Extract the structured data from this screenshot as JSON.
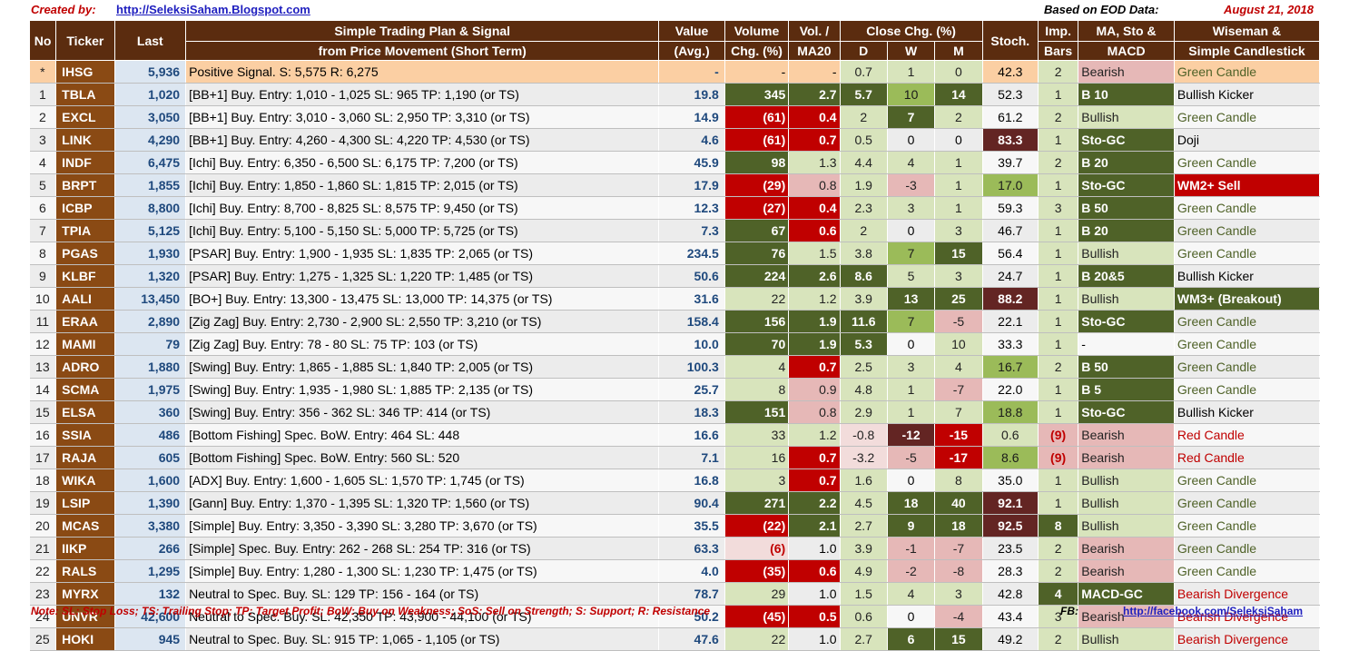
{
  "header": {
    "created_label": "Created by:",
    "site": "http://SeleksiSaham.Blogspot.com",
    "based_label": "Based on EOD Data:",
    "date": "August 21, 2018"
  },
  "columns": {
    "no": "No",
    "ticker": "Ticker",
    "last": "Last",
    "plan1": "Simple Trading Plan & Signal",
    "plan2": "from Price Movement (Short Term)",
    "value1": "Value",
    "value2": "(Avg.)",
    "vol1": "Volume",
    "vol2": "Chg. (%)",
    "ma1": "Vol. /",
    "ma2": "MA20",
    "close": "Close Chg. (%)",
    "d": "D",
    "w": "W",
    "m": "M",
    "stoch": "Stoch.",
    "imp1": "Imp.",
    "imp2": "Bars",
    "macd1": "MA, Sto &",
    "macd2": "MACD",
    "wise1": "Wiseman  &",
    "wise2": "Simple Candlestick"
  },
  "rows": [
    {
      "no": "*",
      "ticker": "IHSG",
      "last": "5,936",
      "plan": "Positive Signal.  S:   5,575  R:  6,275",
      "value": "-",
      "vol": "-",
      "ma": "-",
      "d": "0.7",
      "w": "1",
      "m": "0",
      "stoch": "42.3",
      "imp": "2",
      "macd": "Bearish",
      "wise": "Green Candle"
    },
    {
      "no": "1",
      "ticker": "TBLA",
      "last": "1,020",
      "plan": "[BB+1] Buy.  Entry:  1,010 -  1,025  SL:   965  TP:  1,190  (or TS)",
      "value": "19.8",
      "vol": "345",
      "ma": "2.7",
      "d": "5.7",
      "w": "10",
      "m": "14",
      "stoch": "52.3",
      "imp": "1",
      "macd": "B 10",
      "wise": "Bullish Kicker"
    },
    {
      "no": "2",
      "ticker": "EXCL",
      "last": "3,050",
      "plan": "[BB+1] Buy.  Entry:  3,010 -  3,060  SL:  2,950  TP:  3,310  (or TS)",
      "value": "14.9",
      "vol": "(61)",
      "ma": "0.4",
      "d": "2",
      "w": "7",
      "m": "2",
      "stoch": "61.2",
      "imp": "2",
      "macd": "Bullish",
      "wise": "Green Candle"
    },
    {
      "no": "3",
      "ticker": "LINK",
      "last": "4,290",
      "plan": "[BB+1] Buy.  Entry:  4,260 -  4,300  SL:  4,220  TP:  4,530  (or TS)",
      "value": "4.6",
      "vol": "(61)",
      "ma": "0.7",
      "d": "0.5",
      "w": "0",
      "m": "0",
      "stoch": "83.3",
      "imp": "1",
      "macd": "Sto-GC",
      "wise": "Doji"
    },
    {
      "no": "4",
      "ticker": "INDF",
      "last": "6,475",
      "plan": "[Ichi] Buy.  Entry:  6,350 -  6,500  SL:  6,175  TP:  7,200  (or TS)",
      "value": "45.9",
      "vol": "98",
      "ma": "1.3",
      "d": "4.4",
      "w": "4",
      "m": "1",
      "stoch": "39.7",
      "imp": "2",
      "macd": "B 20",
      "wise": "Green Candle"
    },
    {
      "no": "5",
      "ticker": "BRPT",
      "last": "1,855",
      "plan": "[Ichi] Buy.  Entry:  1,850 -  1,860  SL:  1,815  TP:  2,015  (or TS)",
      "value": "17.9",
      "vol": "(29)",
      "ma": "0.8",
      "d": "1.9",
      "w": "-3",
      "m": "1",
      "stoch": "17.0",
      "imp": "1",
      "macd": "Sto-GC",
      "wise": "WM2+ Sell"
    },
    {
      "no": "6",
      "ticker": "ICBP",
      "last": "8,800",
      "plan": "[Ichi] Buy.  Entry:  8,700 -  8,825  SL:  8,575  TP:  9,450  (or TS)",
      "value": "12.3",
      "vol": "(27)",
      "ma": "0.4",
      "d": "2.3",
      "w": "3",
      "m": "1",
      "stoch": "59.3",
      "imp": "3",
      "macd": "B 50",
      "wise": "Green Candle"
    },
    {
      "no": "7",
      "ticker": "TPIA",
      "last": "5,125",
      "plan": "[Ichi] Buy.  Entry:  5,100 -  5,150  SL:  5,000  TP:  5,725  (or TS)",
      "value": "7.3",
      "vol": "67",
      "ma": "0.6",
      "d": "2",
      "w": "0",
      "m": "3",
      "stoch": "46.7",
      "imp": "1",
      "macd": "B 20",
      "wise": "Green Candle"
    },
    {
      "no": "8",
      "ticker": "PGAS",
      "last": "1,930",
      "plan": "[PSAR] Buy.  Entry:  1,900 -  1,935  SL:  1,835  TP:  2,065  (or TS)",
      "value": "234.5",
      "vol": "76",
      "ma": "1.5",
      "d": "3.8",
      "w": "7",
      "m": "15",
      "stoch": "56.4",
      "imp": "1",
      "macd": "Bullish",
      "wise": "Green Candle"
    },
    {
      "no": "9",
      "ticker": "KLBF",
      "last": "1,320",
      "plan": "[PSAR] Buy.  Entry:  1,275 -  1,325  SL:  1,220  TP:  1,485  (or TS)",
      "value": "50.6",
      "vol": "224",
      "ma": "2.6",
      "d": "8.6",
      "w": "5",
      "m": "3",
      "stoch": "24.7",
      "imp": "1",
      "macd": "B 20&5",
      "wise": "Bullish Kicker"
    },
    {
      "no": "10",
      "ticker": "AALI",
      "last": "13,450",
      "plan": "[BO+] Buy.  Entry: 13,300 - 13,475  SL: 13,000  TP: 14,375  (or TS)",
      "value": "31.6",
      "vol": "22",
      "ma": "1.2",
      "d": "3.9",
      "w": "13",
      "m": "25",
      "stoch": "88.2",
      "imp": "1",
      "macd": "Bullish",
      "wise": "WM3+ (Breakout)"
    },
    {
      "no": "11",
      "ticker": "ERAA",
      "last": "2,890",
      "plan": "[Zig Zag] Buy.  Entry:  2,730 -  2,900  SL:  2,550  TP:  3,210  (or TS)",
      "value": "158.4",
      "vol": "156",
      "ma": "1.9",
      "d": "11.6",
      "w": "7",
      "m": "-5",
      "stoch": "22.1",
      "imp": "1",
      "macd": "Sto-GC",
      "wise": "Green Candle"
    },
    {
      "no": "12",
      "ticker": "MAMI",
      "last": "79",
      "plan": "[Zig Zag] Buy.  Entry:    78 -    80  SL:    75  TP:   103  (or TS)",
      "value": "10.0",
      "vol": "70",
      "ma": "1.9",
      "d": "5.3",
      "w": "0",
      "m": "10",
      "stoch": "33.3",
      "imp": "1",
      "macd": "-",
      "wise": "Green Candle"
    },
    {
      "no": "13",
      "ticker": "ADRO",
      "last": "1,880",
      "plan": "[Swing] Buy.  Entry:  1,865 -  1,885  SL:  1,840  TP:  2,005  (or TS)",
      "value": "100.3",
      "vol": "4",
      "ma": "0.7",
      "d": "2.5",
      "w": "3",
      "m": "4",
      "stoch": "16.7",
      "imp": "2",
      "macd": "B 50",
      "wise": "Green Candle"
    },
    {
      "no": "14",
      "ticker": "SCMA",
      "last": "1,975",
      "plan": "[Swing] Buy.  Entry:  1,935 -  1,980  SL:  1,885  TP:  2,135  (or TS)",
      "value": "25.7",
      "vol": "8",
      "ma": "0.9",
      "d": "4.8",
      "w": "1",
      "m": "-7",
      "stoch": "22.0",
      "imp": "1",
      "macd": "B 5",
      "wise": "Green Candle"
    },
    {
      "no": "15",
      "ticker": "ELSA",
      "last": "360",
      "plan": "[Swing] Buy.  Entry:   356 -   362  SL:   346  TP:   414  (or TS)",
      "value": "18.3",
      "vol": "151",
      "ma": "0.8",
      "d": "2.9",
      "w": "1",
      "m": "7",
      "stoch": "18.8",
      "imp": "1",
      "macd": "Sto-GC",
      "wise": "Bullish Kicker"
    },
    {
      "no": "16",
      "ticker": "SSIA",
      "last": "486",
      "plan": "[Bottom Fishing]  Spec. BoW. Entry:   464  SL:   448",
      "value": "16.6",
      "vol": "33",
      "ma": "1.2",
      "d": "-0.8",
      "w": "-12",
      "m": "-15",
      "stoch": "0.6",
      "imp": "(9)",
      "macd": "Bearish",
      "wise": "Red Candle"
    },
    {
      "no": "17",
      "ticker": "RAJA",
      "last": "605",
      "plan": "[Bottom Fishing]  Spec. BoW. Entry:   560  SL:   520",
      "value": "7.1",
      "vol": "16",
      "ma": "0.7",
      "d": "-3.2",
      "w": "-5",
      "m": "-17",
      "stoch": "8.6",
      "imp": "(9)",
      "macd": "Bearish",
      "wise": "Red Candle"
    },
    {
      "no": "18",
      "ticker": "WIKA",
      "last": "1,600",
      "plan": "[ADX] Buy.  Entry:  1,600 -  1,605  SL:  1,570  TP:  1,745  (or TS)",
      "value": "16.8",
      "vol": "3",
      "ma": "0.7",
      "d": "1.6",
      "w": "0",
      "m": "8",
      "stoch": "35.0",
      "imp": "1",
      "macd": "Bullish",
      "wise": "Green Candle"
    },
    {
      "no": "19",
      "ticker": "LSIP",
      "last": "1,390",
      "plan": "[Gann] Buy.  Entry:  1,370 -  1,395  SL:  1,320  TP:  1,560  (or TS)",
      "value": "90.4",
      "vol": "271",
      "ma": "2.2",
      "d": "4.5",
      "w": "18",
      "m": "40",
      "stoch": "92.1",
      "imp": "1",
      "macd": "Bullish",
      "wise": "Green Candle"
    },
    {
      "no": "20",
      "ticker": "MCAS",
      "last": "3,380",
      "plan": "[Simple] Buy.  Entry:  3,350 -  3,390  SL:  3,280  TP:  3,670  (or TS)",
      "value": "35.5",
      "vol": "(22)",
      "ma": "2.1",
      "d": "2.7",
      "w": "9",
      "m": "18",
      "stoch": "92.5",
      "imp": "8",
      "macd": "Bullish",
      "wise": "Green Candle"
    },
    {
      "no": "21",
      "ticker": "IIKP",
      "last": "266",
      "plan": "[Simple] Spec. Buy. Entry:   262 -   268  SL:   254  TP:   316  (or TS)",
      "value": "63.3",
      "vol": "(6)",
      "ma": "1.0",
      "d": "3.9",
      "w": "-1",
      "m": "-7",
      "stoch": "23.5",
      "imp": "2",
      "macd": "Bearish",
      "wise": "Green Candle"
    },
    {
      "no": "22",
      "ticker": "RALS",
      "last": "1,295",
      "plan": "[Simple] Buy.  Entry:  1,280 -  1,300  SL:  1,230  TP:  1,475  (or TS)",
      "value": "4.0",
      "vol": "(35)",
      "ma": "0.6",
      "d": "4.9",
      "w": "-2",
      "m": "-8",
      "stoch": "28.3",
      "imp": "2",
      "macd": "Bearish",
      "wise": "Green Candle"
    },
    {
      "no": "23",
      "ticker": "MYRX",
      "last": "132",
      "plan": "Neutral to Spec. Buy.  SL:   129  TP:   156 -   164  (or TS)",
      "value": "78.7",
      "vol": "29",
      "ma": "1.0",
      "d": "1.5",
      "w": "4",
      "m": "3",
      "stoch": "42.8",
      "imp": "4",
      "macd": "MACD-GC",
      "wise": "Bearish Divergence"
    },
    {
      "no": "24",
      "ticker": "UNVR",
      "last": "42,600",
      "plan": "Neutral to Spec. Buy.  SL: 42,350  TP: 43,900 - 44,100  (or TS)",
      "value": "50.2",
      "vol": "(45)",
      "ma": "0.5",
      "d": "0.6",
      "w": "0",
      "m": "-4",
      "stoch": "43.4",
      "imp": "3",
      "macd": "Bearish",
      "wise": "Bearish Divergence"
    },
    {
      "no": "25",
      "ticker": "HOKI",
      "last": "945",
      "plan": "Neutral to Spec. Buy.  SL:   915  TP:  1,065 -  1,105  (or TS)",
      "value": "47.6",
      "vol": "22",
      "ma": "1.0",
      "d": "2.7",
      "w": "6",
      "m": "15",
      "stoch": "49.2",
      "imp": "2",
      "macd": "Bullish",
      "wise": "Bearish Divergence"
    }
  ],
  "footer": {
    "note": "Note:  SL: Stop Loss; TS: Trailing Stop; TP: Target Profit; BoW: Buy on Weakness; SoS: Sell on Strength; S: Support; R: Resistance",
    "fb_label": "FB:",
    "fb_link": "http://facebook.com/SeleksiSaham"
  }
}
